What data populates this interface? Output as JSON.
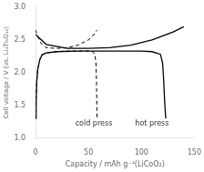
{
  "chart_data": {
    "type": "line",
    "xlabel": "Capacity / mAh g⁻¹(LiCoO₂)",
    "ylabel": "Cell voltage / V (vs. Li₄Ti₅O₁₂)",
    "xlim": [
      0,
      150
    ],
    "ylim": [
      1.0,
      3.0
    ],
    "xticks": [
      0,
      50,
      100,
      150
    ],
    "yticks": [
      {
        "value": 1.0,
        "label": "1.0"
      },
      1.5,
      {
        "value": 2.0,
        "label": "2.0"
      },
      2.5,
      {
        "value": 3.0,
        "label": "3.0"
      }
    ],
    "grid": false,
    "annotations": [
      {
        "text": "cold press",
        "x": 55,
        "y": 1.22
      },
      {
        "text": "hot press",
        "x": 110,
        "y": 1.22
      }
    ],
    "series": [
      {
        "color": "#000000",
        "line_style": "dashed",
        "x": [
          0,
          0.5,
          1,
          2,
          4,
          6,
          10,
          20,
          30,
          40,
          50,
          54,
          56,
          57,
          57.5,
          58
        ],
        "values": [
          1.3,
          1.6,
          1.85,
          2.05,
          2.2,
          2.27,
          2.3,
          2.32,
          2.33,
          2.33,
          2.33,
          2.32,
          2.28,
          2.15,
          1.9,
          1.3
        ]
      },
      {
        "color": "#000000",
        "line_style": "dashed",
        "x": [
          0,
          2,
          5,
          10,
          20,
          30,
          40,
          50,
          55,
          58
        ],
        "values": [
          2.65,
          2.55,
          2.45,
          2.38,
          2.37,
          2.38,
          2.42,
          2.5,
          2.58,
          2.65
        ]
      },
      {
        "color": "#000000",
        "line_style": "solid",
        "x": [
          0,
          0.5,
          1,
          2,
          4,
          6,
          10,
          20,
          40,
          60,
          80,
          100,
          110,
          118,
          120,
          121,
          122,
          123
        ],
        "values": [
          1.3,
          1.6,
          1.85,
          2.05,
          2.2,
          2.27,
          2.3,
          2.32,
          2.33,
          2.33,
          2.33,
          2.33,
          2.32,
          2.28,
          2.15,
          1.9,
          1.55,
          1.3
        ]
      },
      {
        "color": "#000000",
        "line_style": "solid",
        "x": [
          0,
          10,
          30,
          50,
          70,
          90,
          110,
          130,
          140
        ],
        "values": [
          2.58,
          2.43,
          2.37,
          2.37,
          2.38,
          2.42,
          2.5,
          2.62,
          2.7
        ]
      }
    ]
  }
}
